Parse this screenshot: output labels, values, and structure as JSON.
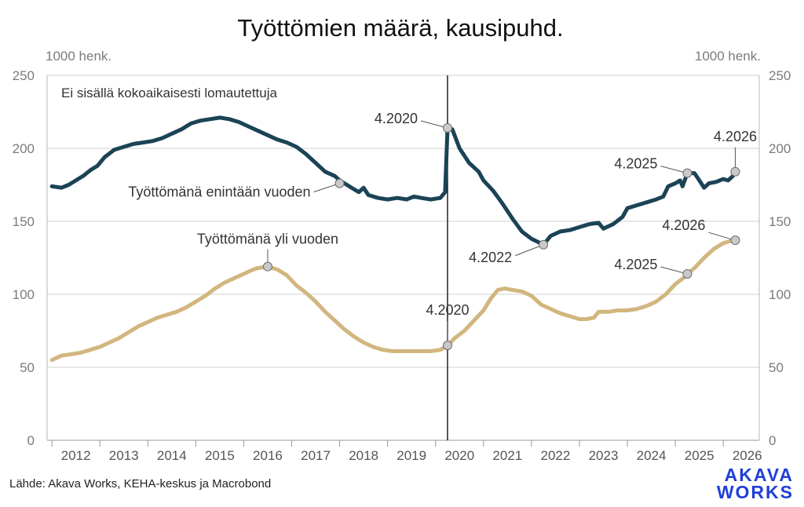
{
  "chart_data": {
    "type": "line",
    "title": "Työttömien määrä, kausipuhd.",
    "unit_left": "1000 henk.",
    "unit_right": "1000 henk.",
    "note": "Ei sisällä kokoaikaisesti lomautettuja",
    "ylim": [
      0,
      250
    ],
    "yticks": [
      0,
      50,
      100,
      150,
      200,
      250
    ],
    "xticks": [
      "2012",
      "2013",
      "2014",
      "2015",
      "2016",
      "2017",
      "2018",
      "2019",
      "2020",
      "2021",
      "2022",
      "2023",
      "2024",
      "2025",
      "2026"
    ],
    "xlim": [
      2011.9,
      2026.75
    ],
    "vline_x": 2020.25,
    "colors": {
      "short": "#1b4356",
      "long": "#d2b67f"
    },
    "series": [
      {
        "key": "short",
        "name": "Työttömänä enintään vuoden",
        "points": [
          [
            2012.0,
            174
          ],
          [
            2012.2,
            173
          ],
          [
            2012.35,
            175
          ],
          [
            2012.5,
            178
          ],
          [
            2012.65,
            181
          ],
          [
            2012.8,
            185
          ],
          [
            2012.95,
            188
          ],
          [
            2013.1,
            194
          ],
          [
            2013.3,
            199
          ],
          [
            2013.5,
            201
          ],
          [
            2013.7,
            203
          ],
          [
            2013.9,
            204
          ],
          [
            2014.1,
            205
          ],
          [
            2014.3,
            207
          ],
          [
            2014.5,
            210
          ],
          [
            2014.7,
            213
          ],
          [
            2014.9,
            217
          ],
          [
            2015.1,
            219
          ],
          [
            2015.3,
            220
          ],
          [
            2015.5,
            221
          ],
          [
            2015.7,
            220
          ],
          [
            2015.9,
            218
          ],
          [
            2016.1,
            215
          ],
          [
            2016.3,
            212
          ],
          [
            2016.5,
            209
          ],
          [
            2016.7,
            206
          ],
          [
            2016.9,
            204
          ],
          [
            2017.1,
            201
          ],
          [
            2017.3,
            196
          ],
          [
            2017.5,
            190
          ],
          [
            2017.7,
            184
          ],
          [
            2017.9,
            181
          ],
          [
            2018.0,
            178
          ],
          [
            2018.1,
            176
          ],
          [
            2018.25,
            173
          ],
          [
            2018.4,
            170
          ],
          [
            2018.5,
            173
          ],
          [
            2018.6,
            168
          ],
          [
            2018.8,
            166
          ],
          [
            2019.0,
            165
          ],
          [
            2019.2,
            166
          ],
          [
            2019.4,
            165
          ],
          [
            2019.55,
            167
          ],
          [
            2019.7,
            166
          ],
          [
            2019.9,
            165
          ],
          [
            2020.1,
            166
          ],
          [
            2020.2,
            170
          ],
          [
            2020.25,
            214
          ],
          [
            2020.35,
            213
          ],
          [
            2020.5,
            200
          ],
          [
            2020.7,
            190
          ],
          [
            2020.9,
            184
          ],
          [
            2021.0,
            178
          ],
          [
            2021.2,
            171
          ],
          [
            2021.4,
            162
          ],
          [
            2021.6,
            152
          ],
          [
            2021.8,
            143
          ],
          [
            2022.0,
            138
          ],
          [
            2022.25,
            134
          ],
          [
            2022.4,
            140
          ],
          [
            2022.6,
            143
          ],
          [
            2022.8,
            144
          ],
          [
            2023.0,
            146
          ],
          [
            2023.2,
            148
          ],
          [
            2023.4,
            149
          ],
          [
            2023.5,
            145
          ],
          [
            2023.7,
            148
          ],
          [
            2023.9,
            153
          ],
          [
            2024.0,
            159
          ],
          [
            2024.2,
            161
          ],
          [
            2024.4,
            163
          ],
          [
            2024.6,
            165
          ],
          [
            2024.75,
            167
          ],
          [
            2024.85,
            174
          ],
          [
            2025.0,
            176
          ],
          [
            2025.1,
            178
          ],
          [
            2025.15,
            174
          ],
          [
            2025.25,
            183
          ],
          [
            2025.4,
            183
          ],
          [
            2025.5,
            178
          ],
          [
            2025.6,
            173
          ],
          [
            2025.7,
            176
          ],
          [
            2025.85,
            177
          ],
          [
            2026.0,
            179
          ],
          [
            2026.1,
            178
          ],
          [
            2026.2,
            181
          ],
          [
            2026.25,
            184
          ]
        ]
      },
      {
        "key": "long",
        "name": "Työttömänä yli vuoden",
        "points": [
          [
            2012.0,
            55
          ],
          [
            2012.2,
            58
          ],
          [
            2012.4,
            59
          ],
          [
            2012.6,
            60
          ],
          [
            2012.8,
            62
          ],
          [
            2013.0,
            64
          ],
          [
            2013.2,
            67
          ],
          [
            2013.4,
            70
          ],
          [
            2013.6,
            74
          ],
          [
            2013.8,
            78
          ],
          [
            2014.0,
            81
          ],
          [
            2014.2,
            84
          ],
          [
            2014.4,
            86
          ],
          [
            2014.6,
            88
          ],
          [
            2014.8,
            91
          ],
          [
            2015.0,
            95
          ],
          [
            2015.2,
            99
          ],
          [
            2015.4,
            104
          ],
          [
            2015.6,
            108
          ],
          [
            2015.8,
            111
          ],
          [
            2016.0,
            114
          ],
          [
            2016.2,
            117
          ],
          [
            2016.3,
            118
          ],
          [
            2016.5,
            119
          ],
          [
            2016.7,
            117
          ],
          [
            2016.9,
            113
          ],
          [
            2017.1,
            106
          ],
          [
            2017.3,
            101
          ],
          [
            2017.5,
            95
          ],
          [
            2017.7,
            88
          ],
          [
            2017.9,
            82
          ],
          [
            2018.1,
            76
          ],
          [
            2018.3,
            71
          ],
          [
            2018.5,
            67
          ],
          [
            2018.7,
            64
          ],
          [
            2018.9,
            62
          ],
          [
            2019.1,
            61
          ],
          [
            2019.3,
            61
          ],
          [
            2019.5,
            61
          ],
          [
            2019.7,
            61
          ],
          [
            2019.9,
            61
          ],
          [
            2020.1,
            62
          ],
          [
            2020.25,
            65
          ],
          [
            2020.4,
            70
          ],
          [
            2020.6,
            75
          ],
          [
            2020.8,
            82
          ],
          [
            2021.0,
            89
          ],
          [
            2021.15,
            97
          ],
          [
            2021.3,
            103
          ],
          [
            2021.45,
            104
          ],
          [
            2021.6,
            103
          ],
          [
            2021.8,
            102
          ],
          [
            2022.0,
            99
          ],
          [
            2022.2,
            93
          ],
          [
            2022.4,
            90
          ],
          [
            2022.6,
            87
          ],
          [
            2022.8,
            85
          ],
          [
            2023.0,
            83
          ],
          [
            2023.15,
            83
          ],
          [
            2023.3,
            84
          ],
          [
            2023.4,
            88
          ],
          [
            2023.6,
            88
          ],
          [
            2023.8,
            89
          ],
          [
            2024.0,
            89
          ],
          [
            2024.2,
            90
          ],
          [
            2024.4,
            92
          ],
          [
            2024.6,
            95
          ],
          [
            2024.8,
            100
          ],
          [
            2025.0,
            107
          ],
          [
            2025.2,
            112
          ],
          [
            2025.25,
            114
          ],
          [
            2025.4,
            118
          ],
          [
            2025.6,
            125
          ],
          [
            2025.8,
            131
          ],
          [
            2026.0,
            135
          ],
          [
            2026.2,
            137
          ],
          [
            2026.25,
            137
          ]
        ]
      }
    ],
    "series_labels": [
      {
        "text": "Työttömänä enintään vuoden",
        "at": [
          2018.0,
          176
        ],
        "side": "left"
      },
      {
        "text": "Työttömänä yli vuoden",
        "at": [
          2016.5,
          119
        ],
        "side": "above"
      }
    ],
    "annotations": [
      {
        "label": "4.2020",
        "series": "short",
        "at": [
          2020.25,
          214
        ],
        "pos": "left"
      },
      {
        "label": "4.2022",
        "series": "short",
        "at": [
          2022.25,
          134
        ],
        "pos": "below-left"
      },
      {
        "label": "4.2025",
        "series": "short",
        "at": [
          2025.25,
          183
        ],
        "pos": "left"
      },
      {
        "label": "4.2026",
        "series": "short",
        "at": [
          2026.25,
          184
        ],
        "pos": "above"
      },
      {
        "label": "4.2020",
        "series": "long",
        "at": [
          2020.25,
          65
        ],
        "pos": "above"
      },
      {
        "label": "4.2025",
        "series": "long",
        "at": [
          2025.25,
          114
        ],
        "pos": "left"
      },
      {
        "label": "4.2026",
        "series": "long",
        "at": [
          2026.25,
          137
        ],
        "pos": "above-left"
      }
    ],
    "source": "Lähde: Akava Works, KEHA-keskus ja Macrobond",
    "logo": [
      "AKAVA",
      "WORKS"
    ],
    "logo_color": "#1f3fd6",
    "grid": true,
    "legend": "none"
  }
}
